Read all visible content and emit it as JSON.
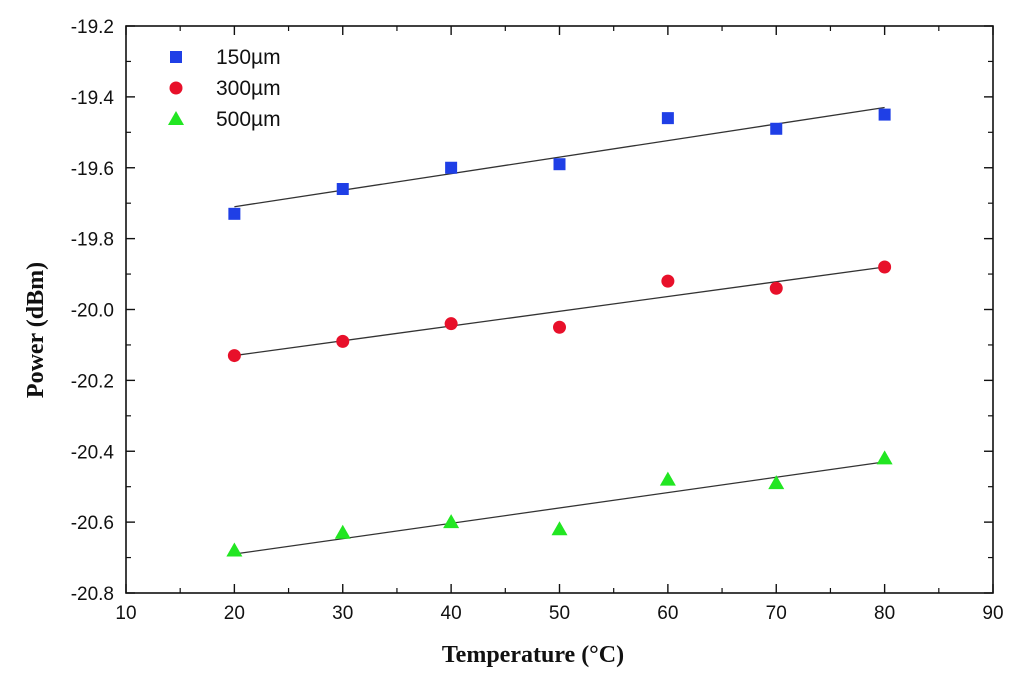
{
  "chart_data": {
    "type": "scatter",
    "title": "",
    "xlabel": "Temperature (°C)",
    "ylabel": "Power (dBm)",
    "xlim": [
      10,
      90
    ],
    "ylim": [
      -20.8,
      -19.2
    ],
    "x_ticks": [
      10,
      20,
      30,
      40,
      50,
      60,
      70,
      80,
      90
    ],
    "y_ticks": [
      -20.8,
      -20.6,
      -20.4,
      -20.2,
      -20.0,
      -19.8,
      -19.6,
      -19.4,
      -19.2
    ],
    "x_tick_labels": [
      "10",
      "20",
      "30",
      "40",
      "50",
      "60",
      "70",
      "80",
      "90"
    ],
    "y_tick_labels": [
      "-20.8",
      "-20.6",
      "-20.4",
      "-20.2",
      "-20.0",
      "-19.8",
      "-19.6",
      "-19.4",
      "-19.2"
    ],
    "grid": false,
    "legend_position": "top-left",
    "x": [
      20,
      30,
      40,
      50,
      60,
      70,
      80
    ],
    "series": [
      {
        "name": "150µm",
        "marker": "square",
        "color": "#1f3fe6",
        "values": [
          -19.73,
          -19.66,
          -19.6,
          -19.59,
          -19.46,
          -19.49,
          -19.45
        ],
        "fit": {
          "x": [
            20,
            80
          ],
          "y": [
            -19.71,
            -19.43
          ]
        }
      },
      {
        "name": "300µm",
        "marker": "circle",
        "color": "#e8102a",
        "values": [
          -20.13,
          -20.09,
          -20.04,
          -20.05,
          -19.92,
          -19.94,
          -19.88
        ],
        "fit": {
          "x": [
            20,
            80
          ],
          "y": [
            -20.13,
            -19.88
          ]
        }
      },
      {
        "name": "500µm",
        "marker": "triangle",
        "color": "#22e622",
        "values": [
          -20.68,
          -20.63,
          -20.6,
          -20.62,
          -20.48,
          -20.49,
          -20.42
        ],
        "fit": {
          "x": [
            20,
            80
          ],
          "y": [
            -20.69,
            -20.43
          ]
        }
      }
    ]
  },
  "colors": {
    "axis": "#111111",
    "fit_line": "#333333",
    "background": "#ffffff"
  }
}
